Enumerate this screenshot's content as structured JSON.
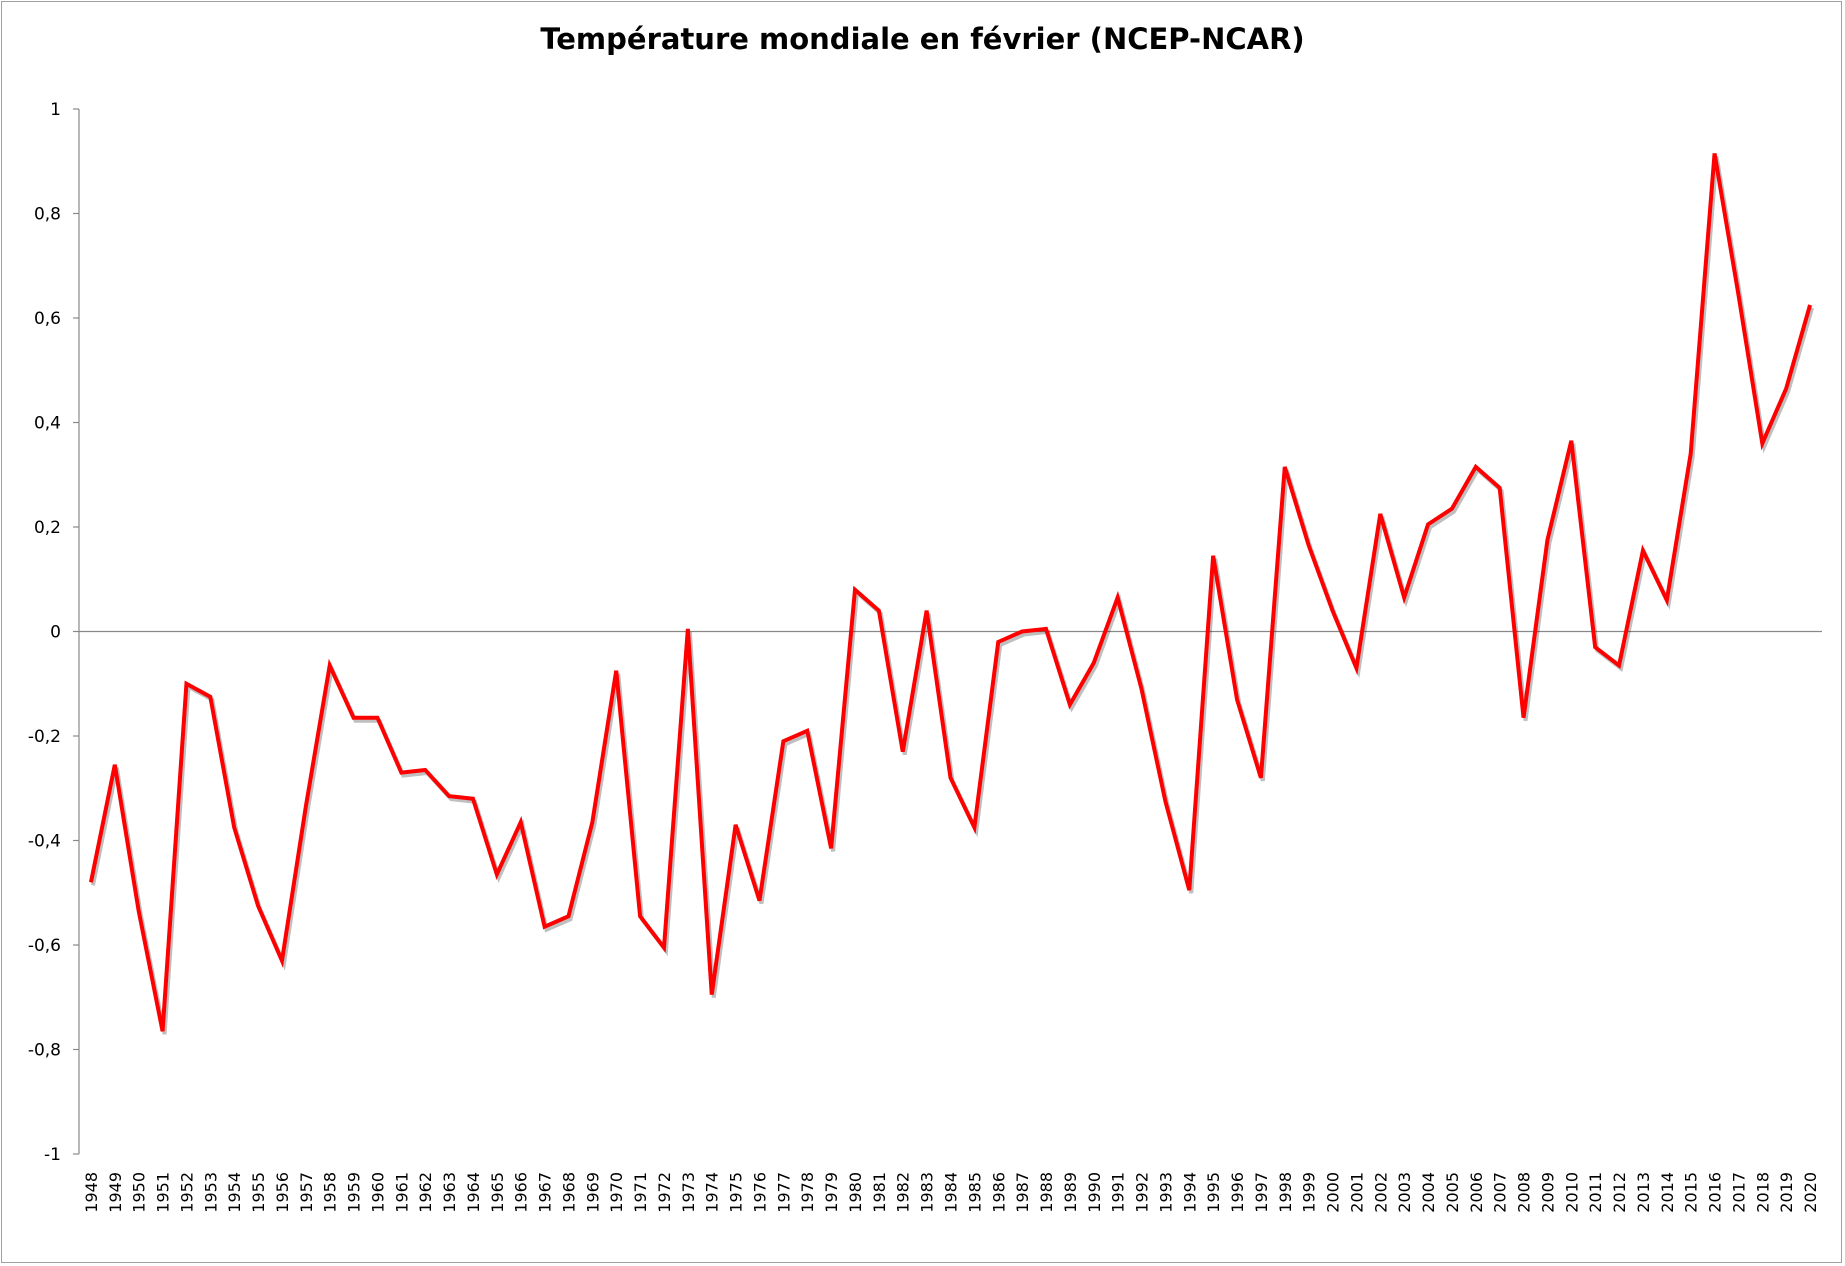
{
  "chart_data": {
    "type": "line",
    "title": "Température mondiale en février (NCEP-NCAR)",
    "xlabel": "",
    "ylabel": "",
    "ylim": [
      -1,
      1
    ],
    "yticks": [
      "-1",
      "-0,8",
      "-0,6",
      "-0,4",
      "-0,2",
      "0",
      "0,2",
      "0,4",
      "0,6",
      "0,8",
      "1"
    ],
    "ytick_values": [
      -1,
      -0.8,
      -0.6,
      -0.4,
      -0.2,
      0,
      0.2,
      0.4,
      0.6,
      0.8,
      1
    ],
    "line_color": "#ff0000",
    "categories": [
      "1948",
      "1949",
      "1950",
      "1951",
      "1952",
      "1953",
      "1954",
      "1955",
      "1956",
      "1957",
      "1958",
      "1959",
      "1960",
      "1961",
      "1962",
      "1963",
      "1964",
      "1965",
      "1966",
      "1967",
      "1968",
      "1969",
      "1970",
      "1971",
      "1972",
      "1973",
      "1974",
      "1975",
      "1976",
      "1977",
      "1978",
      "1979",
      "1980",
      "1981",
      "1982",
      "1983",
      "1984",
      "1985",
      "1986",
      "1987",
      "1988",
      "1989",
      "1990",
      "1991",
      "1992",
      "1993",
      "1994",
      "1995",
      "1996",
      "1997",
      "1998",
      "1999",
      "2000",
      "2001",
      "2002",
      "2003",
      "2004",
      "2005",
      "2006",
      "2007",
      "2008",
      "2009",
      "2010",
      "2011",
      "2012",
      "2013",
      "2014",
      "2015",
      "2016",
      "2017",
      "2018",
      "2019",
      "2020"
    ],
    "values": [
      -0.48,
      -0.255,
      -0.535,
      -0.765,
      -0.1,
      -0.125,
      -0.375,
      -0.525,
      -0.63,
      -0.335,
      -0.065,
      -0.165,
      -0.165,
      -0.27,
      -0.265,
      -0.315,
      -0.32,
      -0.465,
      -0.365,
      -0.565,
      -0.545,
      -0.365,
      -0.075,
      -0.545,
      -0.605,
      0.005,
      -0.695,
      -0.37,
      -0.515,
      -0.21,
      -0.19,
      -0.415,
      0.08,
      0.04,
      -0.23,
      0.04,
      -0.28,
      -0.375,
      -0.02,
      0.0,
      0.005,
      -0.14,
      -0.06,
      0.065,
      -0.11,
      -0.325,
      -0.495,
      0.145,
      -0.13,
      -0.28,
      0.315,
      0.165,
      0.04,
      -0.07,
      0.225,
      0.065,
      0.205,
      0.235,
      0.315,
      0.275,
      -0.165,
      0.175,
      0.365,
      -0.03,
      -0.065,
      0.155,
      0.06,
      0.34,
      0.915,
      0.645,
      0.36,
      0.465,
      0.625
    ]
  }
}
